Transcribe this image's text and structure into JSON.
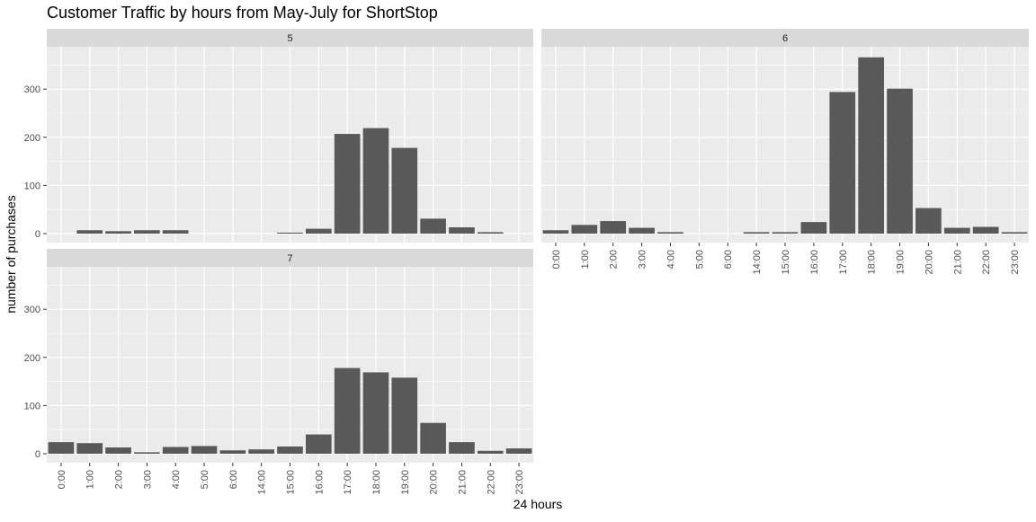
{
  "chart_data": {
    "type": "bar",
    "title": "Customer Traffic by hours from May-July for ShortStop",
    "xlabel": "24 hours",
    "ylabel": "number of purchases",
    "ylim": [
      0,
      400
    ],
    "yticks": [
      0,
      100,
      200,
      300
    ],
    "grid": true,
    "legend": "none",
    "colors": {
      "bar": "#595959",
      "panel_bg": "#ebebeb",
      "strip_bg": "#d9d9d9",
      "grid": "#ffffff",
      "text": "#4d4d4d",
      "title": "#000000"
    },
    "facets": [
      {
        "label": "5",
        "categories": [
          "0:00",
          "1:00",
          "2:00",
          "3:00",
          "4:00",
          "5:00",
          "6:00",
          "14:00",
          "15:00",
          "16:00",
          "17:00",
          "18:00",
          "19:00",
          "20:00",
          "21:00",
          "22:00",
          "23:00"
        ],
        "values": [
          0,
          7,
          5,
          7,
          7,
          0,
          0,
          0,
          2,
          10,
          207,
          219,
          178,
          31,
          13,
          3,
          0
        ],
        "show_x_ticks": false
      },
      {
        "label": "6",
        "categories": [
          "0:00",
          "1:00",
          "2:00",
          "3:00",
          "4:00",
          "5:00",
          "6:00",
          "14:00",
          "15:00",
          "16:00",
          "17:00",
          "18:00",
          "19:00",
          "20:00",
          "21:00",
          "22:00",
          "23:00"
        ],
        "values": [
          7,
          18,
          26,
          12,
          3,
          0,
          0,
          3,
          3,
          24,
          294,
          366,
          301,
          53,
          12,
          14,
          3
        ],
        "show_x_ticks": true
      },
      {
        "label": "7",
        "categories": [
          "0:00",
          "1:00",
          "2:00",
          "3:00",
          "4:00",
          "5:00",
          "6:00",
          "14:00",
          "15:00",
          "16:00",
          "17:00",
          "18:00",
          "19:00",
          "20:00",
          "21:00",
          "22:00",
          "23:00"
        ],
        "values": [
          24,
          22,
          13,
          3,
          14,
          16,
          7,
          9,
          15,
          40,
          178,
          169,
          158,
          64,
          24,
          6,
          11
        ],
        "show_x_ticks": true
      }
    ]
  }
}
